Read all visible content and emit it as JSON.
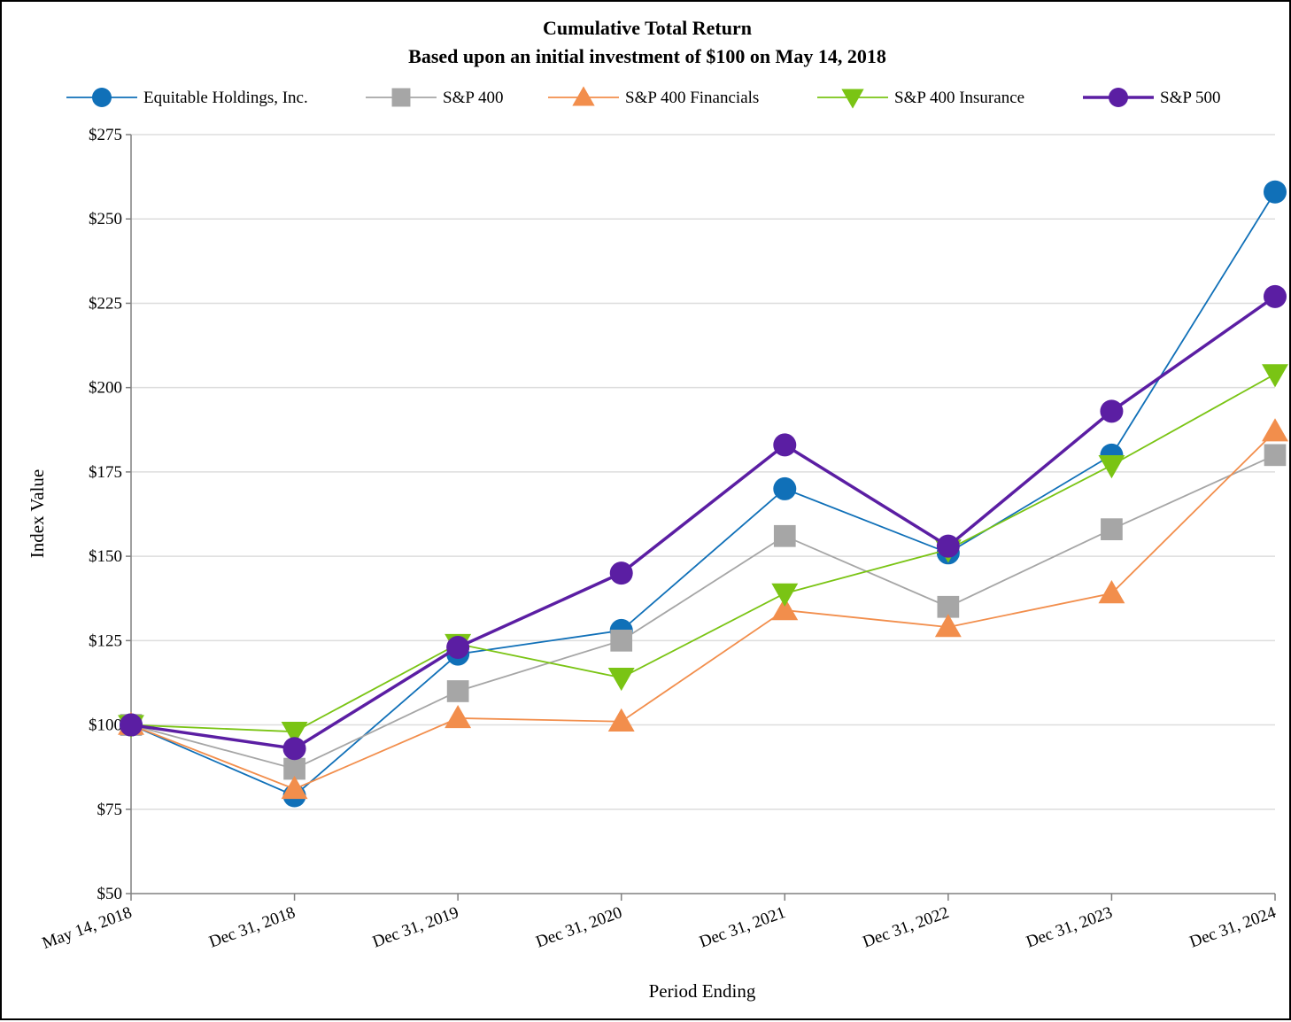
{
  "chart_data": {
    "type": "line",
    "title": "Cumulative Total Return",
    "subtitle": "Based upon an initial investment of $100 on May 14, 2018",
    "xlabel": "Period Ending",
    "ylabel": "Index Value",
    "categories": [
      "May 14, 2018",
      "Dec 31, 2018",
      "Dec 31, 2019",
      "Dec 31, 2020",
      "Dec 31, 2021",
      "Dec 31, 2022",
      "Dec 31, 2023",
      "Dec 31, 2024"
    ],
    "ylim": [
      50,
      275
    ],
    "yticks": [
      50,
      75,
      100,
      125,
      150,
      175,
      200,
      225,
      250,
      275
    ],
    "ytick_labels": [
      "$50",
      "$75",
      "$100",
      "$125",
      "$150",
      "$175",
      "$200",
      "$225",
      "$250",
      "$275"
    ],
    "grid": true,
    "legend_position": "top",
    "series": [
      {
        "name": "Equitable Holdings, Inc.",
        "color": "#1070b8",
        "marker": "circle",
        "values": [
          100,
          79,
          121,
          128,
          170,
          151,
          180,
          258
        ]
      },
      {
        "name": "S&P 400",
        "color": "#a6a6a6",
        "marker": "square",
        "values": [
          100,
          87,
          110,
          125,
          156,
          135,
          158,
          180
        ]
      },
      {
        "name": "S&P 400 Financials",
        "color": "#f28e4c",
        "marker": "triangle-up",
        "values": [
          100,
          81,
          102,
          101,
          134,
          129,
          139,
          187
        ]
      },
      {
        "name": "S&P 400 Insurance",
        "color": "#7ac414",
        "marker": "triangle-down",
        "values": [
          100,
          98,
          124,
          114,
          139,
          152,
          177,
          204
        ]
      },
      {
        "name": "S&P 500",
        "color": "#5b1ea3",
        "marker": "circle",
        "values": [
          100,
          93,
          123,
          145,
          183,
          153,
          193,
          227
        ]
      }
    ]
  }
}
